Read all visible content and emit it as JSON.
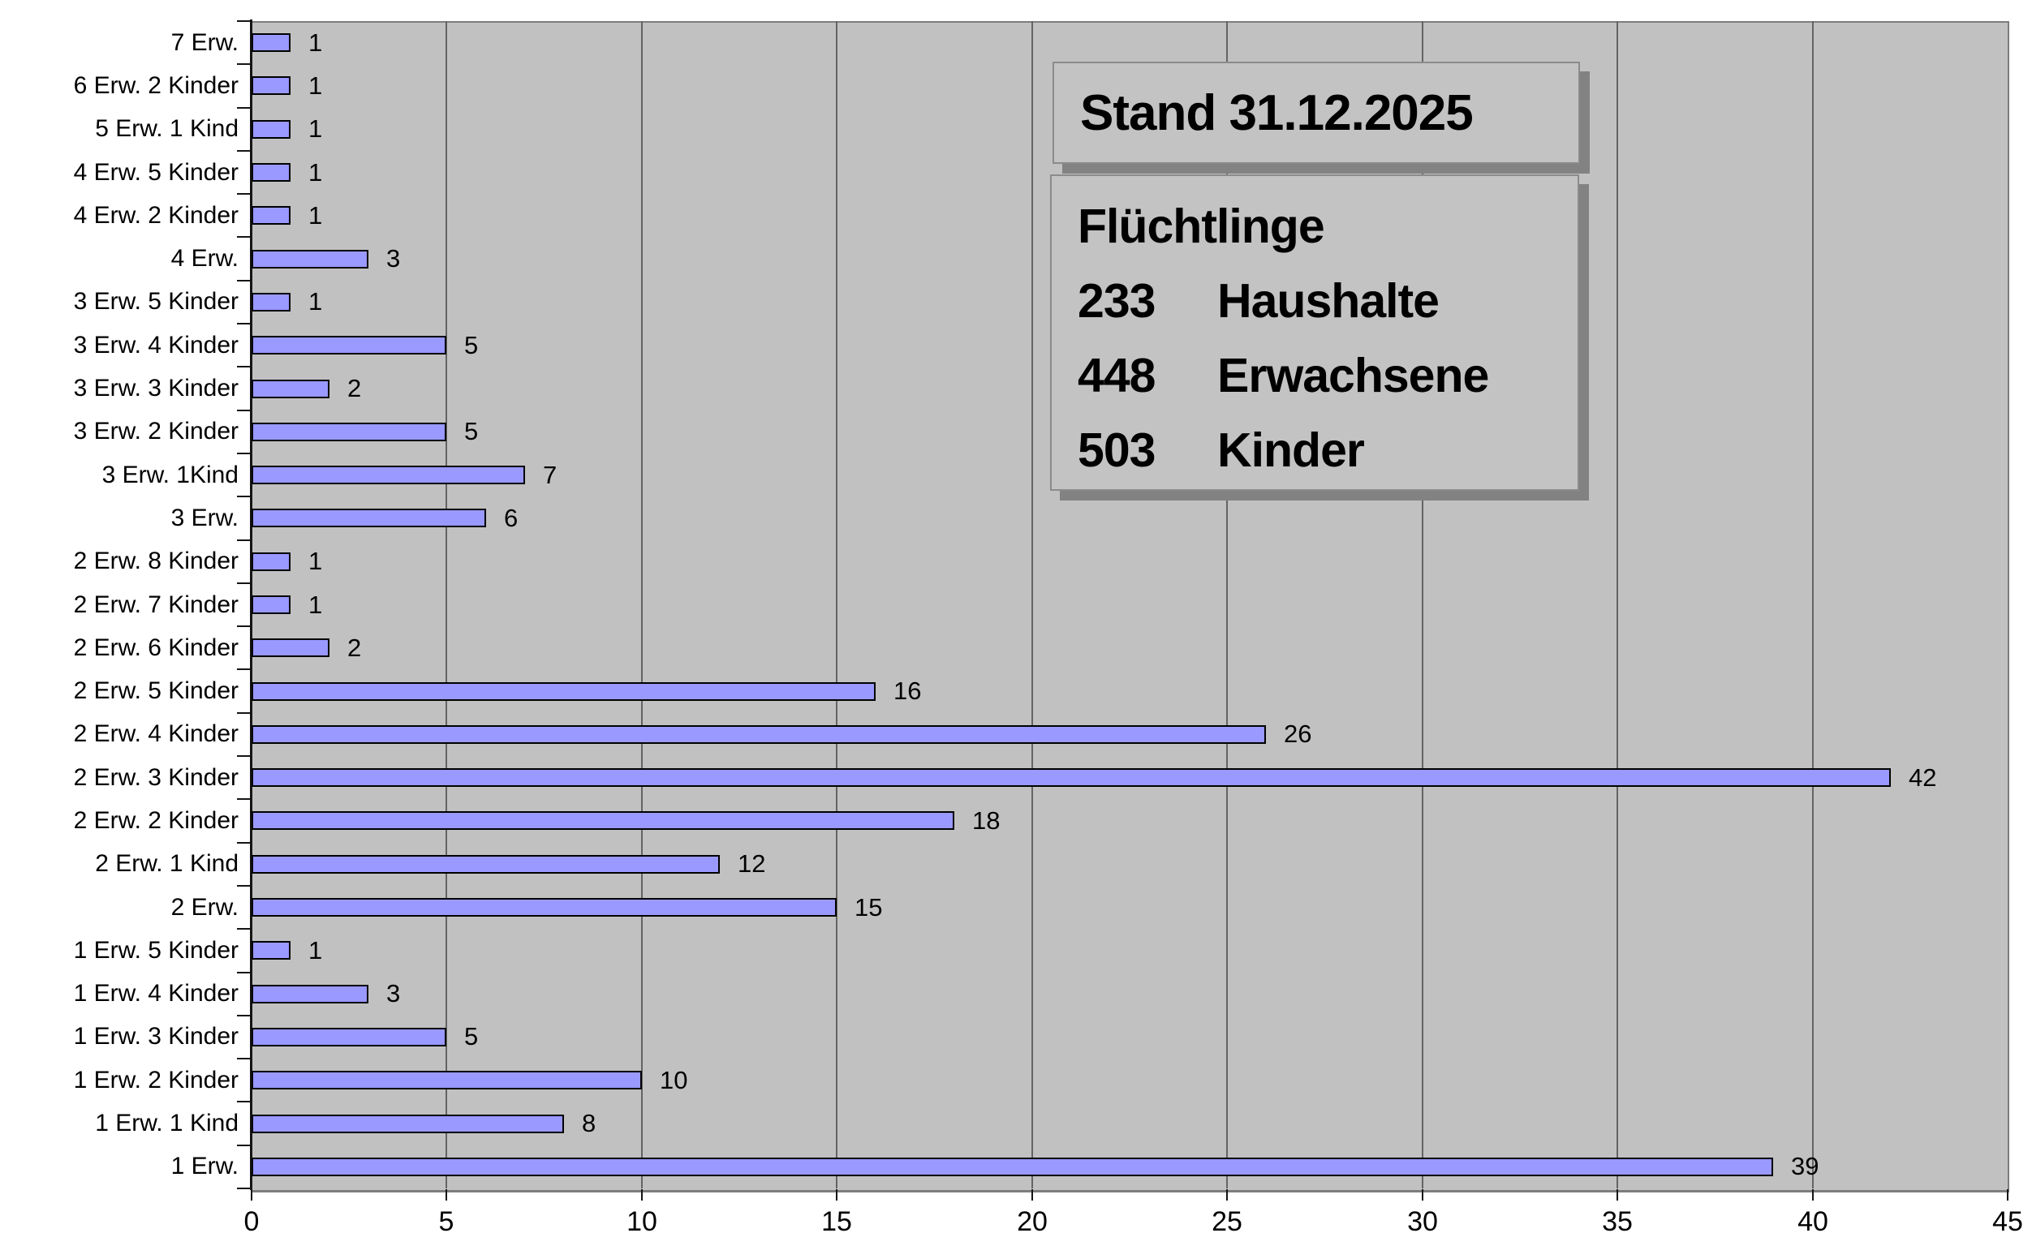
{
  "info_boxes": {
    "stand": {
      "label": "Stand 31.12.2025"
    },
    "summary": {
      "title": "Flüchtlinge",
      "stats": [
        {
          "value": "233",
          "label": "Haushalte"
        },
        {
          "value": "448",
          "label": "Erwachsene"
        },
        {
          "value": "503",
          "label": "Kinder"
        }
      ]
    }
  },
  "chart_data": {
    "type": "bar",
    "orientation": "horizontal",
    "title": "",
    "xlabel": "",
    "ylabel": "",
    "categories": [
      "7 Erw.",
      "6 Erw. 2 Kinder",
      "5 Erw. 1 Kind",
      "4 Erw. 5 Kinder",
      "4 Erw. 2 Kinder",
      "4 Erw.",
      "3 Erw. 5 Kinder",
      "3 Erw. 4 Kinder",
      "3 Erw. 3 Kinder",
      "3 Erw. 2 Kinder",
      "3 Erw. 1Kind",
      "3 Erw.",
      "2 Erw. 8 Kinder",
      "2 Erw. 7 Kinder",
      "2 Erw. 6 Kinder",
      "2 Erw. 5 Kinder",
      "2 Erw. 4 Kinder",
      "2 Erw. 3 Kinder",
      "2 Erw. 2 Kinder",
      "2 Erw. 1 Kind",
      "2 Erw.",
      "1 Erw. 5 Kinder",
      "1 Erw. 4 Kinder",
      "1 Erw. 3 Kinder",
      "1 Erw. 2 Kinder",
      "1 Erw. 1 Kind",
      "1 Erw."
    ],
    "values": [
      1,
      1,
      1,
      1,
      1,
      3,
      1,
      5,
      2,
      5,
      7,
      6,
      1,
      1,
      2,
      16,
      26,
      42,
      18,
      12,
      15,
      1,
      3,
      5,
      10,
      8,
      39
    ],
    "value_labels_shown": true,
    "xlim": [
      0,
      45
    ],
    "x_ticks": [
      0,
      5,
      10,
      15,
      20,
      25,
      30,
      35,
      40,
      45
    ],
    "grid": "vertical gridlines every 5 units",
    "legend": "none",
    "colors": {
      "bar_fill": "#9999ff",
      "bar_border": "#000000",
      "plot_background": "#c1c1c1",
      "gridline": "#646464",
      "plot_border": "#7d7d7d",
      "axis_line": "#151515",
      "text": "#000000",
      "page_background": "#ffffff"
    }
  }
}
